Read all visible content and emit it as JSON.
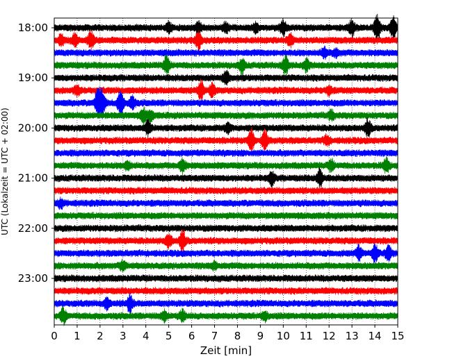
{
  "chart_data": {
    "type": "line",
    "chart_kind": "seismic-helicorder",
    "xlabel": "Zeit  [min]",
    "ylabel": "UTC (Lokalzeit = UTC + 02:00)",
    "xlim": [
      0,
      15
    ],
    "x_ticks": [
      "0",
      "1",
      "2",
      "3",
      "4",
      "5",
      "6",
      "7",
      "8",
      "9",
      "10",
      "11",
      "12",
      "13",
      "14",
      "15"
    ],
    "y_ticks": [
      "18:00",
      "19:00",
      "20:00",
      "21:00",
      "22:00",
      "23:00"
    ],
    "grid": "vertical-dotted",
    "color_cycle": [
      "#000000",
      "#ff0000",
      "#0000ff",
      "#008000"
    ],
    "traces": [
      {
        "start": "18:00",
        "color": "#000000",
        "events": [
          [
            5.0,
            0.6
          ],
          [
            6.3,
            0.7
          ],
          [
            7.5,
            0.6
          ],
          [
            8.8,
            0.5
          ],
          [
            10.0,
            0.9
          ],
          [
            13.0,
            0.9
          ],
          [
            14.1,
            1.6
          ],
          [
            14.8,
            1.3
          ]
        ]
      },
      {
        "start": "18:15",
        "color": "#ff0000",
        "events": [
          [
            0.3,
            0.6
          ],
          [
            0.9,
            0.7
          ],
          [
            1.6,
            1.0
          ],
          [
            6.3,
            1.1
          ],
          [
            10.3,
            0.7
          ]
        ]
      },
      {
        "start": "18:30",
        "color": "#0000ff",
        "events": [
          [
            11.8,
            0.6
          ],
          [
            12.3,
            0.4
          ]
        ]
      },
      {
        "start": "18:45",
        "color": "#008000",
        "events": [
          [
            4.9,
            1.0
          ],
          [
            8.2,
            0.8
          ],
          [
            10.1,
            1.1
          ],
          [
            11.0,
            0.7
          ]
        ]
      },
      {
        "start": "19:00",
        "color": "#000000",
        "events": [
          [
            7.5,
            0.8
          ]
        ]
      },
      {
        "start": "19:15",
        "color": "#ff0000",
        "events": [
          [
            1.0,
            0.5
          ],
          [
            6.4,
            1.1
          ],
          [
            6.9,
            0.7
          ],
          [
            12.0,
            0.5
          ]
        ]
      },
      {
        "start": "19:30",
        "color": "#0000ff",
        "events": [
          [
            1.9,
            1.7
          ],
          [
            2.1,
            1.5
          ],
          [
            2.9,
            1.6
          ],
          [
            3.4,
            0.8
          ]
        ]
      },
      {
        "start": "19:45",
        "color": "#008000",
        "events": [
          [
            3.9,
            0.8
          ],
          [
            4.2,
            0.6
          ],
          [
            12.1,
            0.5
          ]
        ]
      },
      {
        "start": "20:00",
        "color": "#000000",
        "events": [
          [
            4.1,
            0.9
          ],
          [
            7.6,
            0.5
          ],
          [
            13.7,
            1.0
          ]
        ]
      },
      {
        "start": "20:15",
        "color": "#ff0000",
        "events": [
          [
            8.6,
            1.5
          ],
          [
            9.2,
            1.2
          ],
          [
            11.9,
            0.6
          ]
        ]
      },
      {
        "start": "20:30",
        "color": "#0000ff",
        "events": []
      },
      {
        "start": "20:45",
        "color": "#008000",
        "events": [
          [
            3.2,
            0.5
          ],
          [
            5.6,
            0.8
          ],
          [
            12.1,
            0.6
          ],
          [
            14.5,
            0.8
          ]
        ]
      },
      {
        "start": "21:00",
        "color": "#000000",
        "events": [
          [
            9.5,
            0.8
          ],
          [
            11.6,
            1.1
          ]
        ]
      },
      {
        "start": "21:15",
        "color": "#ff0000",
        "events": []
      },
      {
        "start": "21:30",
        "color": "#0000ff",
        "events": [
          [
            0.3,
            0.5
          ]
        ]
      },
      {
        "start": "21:45",
        "color": "#008000",
        "events": []
      },
      {
        "start": "22:00",
        "color": "#000000",
        "events": []
      },
      {
        "start": "22:15",
        "color": "#ff0000",
        "events": [
          [
            5.0,
            0.8
          ],
          [
            5.6,
            1.3
          ]
        ]
      },
      {
        "start": "22:30",
        "color": "#0000ff",
        "events": [
          [
            13.3,
            0.8
          ],
          [
            14.0,
            1.1
          ],
          [
            14.6,
            0.9
          ]
        ]
      },
      {
        "start": "22:45",
        "color": "#008000",
        "events": [
          [
            3.0,
            0.6
          ],
          [
            7.0,
            0.4
          ]
        ]
      },
      {
        "start": "23:00",
        "color": "#000000",
        "events": []
      },
      {
        "start": "23:15",
        "color": "#ff0000",
        "events": []
      },
      {
        "start": "23:30",
        "color": "#0000ff",
        "events": [
          [
            2.3,
            0.6
          ],
          [
            3.3,
            1.0
          ]
        ]
      },
      {
        "start": "23:45",
        "color": "#008000",
        "events": [
          [
            0.4,
            0.9
          ],
          [
            4.8,
            0.6
          ],
          [
            5.6,
            0.6
          ],
          [
            9.2,
            0.5
          ]
        ]
      }
    ]
  }
}
